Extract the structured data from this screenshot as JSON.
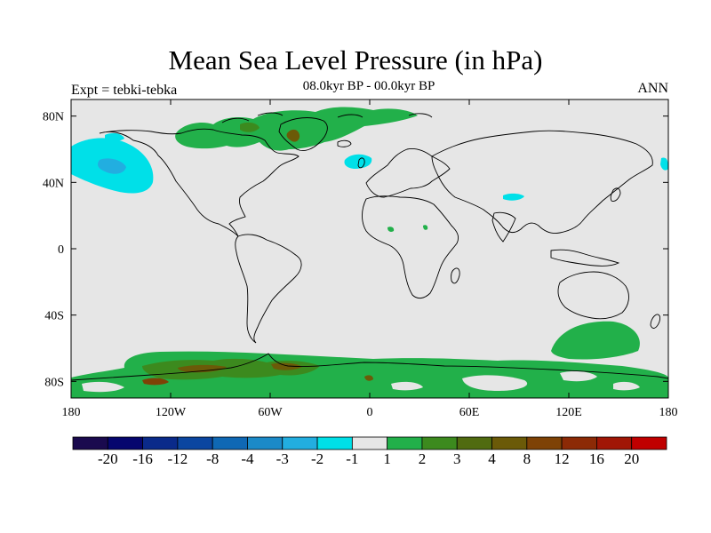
{
  "title": "Mean Sea Level Pressure (in hPa)",
  "subtitle": "08.0kyr BP - 00.0kyr BP",
  "left_string": "Expt = tebki-tebka",
  "right_string": "ANN",
  "colors": {
    "ocean_land_background": "#e6e6e6",
    "coastline": "#000000"
  },
  "map": {
    "lon_range": [
      -180,
      180
    ],
    "lat_range": [
      -90,
      90
    ],
    "lon_ticks": [
      {
        "value": -180,
        "label": "180"
      },
      {
        "value": -120,
        "label": "120W"
      },
      {
        "value": -60,
        "label": "60W"
      },
      {
        "value": 0,
        "label": "0"
      },
      {
        "value": 60,
        "label": "60E"
      },
      {
        "value": 120,
        "label": "120E"
      },
      {
        "value": 180,
        "label": "180"
      }
    ],
    "lat_ticks": [
      {
        "value": 80,
        "label": "80N"
      },
      {
        "value": 40,
        "label": "40N"
      },
      {
        "value": 0,
        "label": "0"
      },
      {
        "value": -40,
        "label": "40S"
      },
      {
        "value": -80,
        "label": "80S"
      }
    ]
  },
  "colorbar": {
    "colors": [
      "#1a0a4e",
      "#06066e",
      "#0a2a8a",
      "#0b46a0",
      "#0f68b4",
      "#1b8ac8",
      "#22aee0",
      "#00e0e8",
      "#e6e6e6",
      "#22b04a",
      "#3c8a1e",
      "#506b10",
      "#6b5a08",
      "#7e4206",
      "#8c2a06",
      "#a01606",
      "#c00000"
    ],
    "labels": [
      "-20",
      "-16",
      "-12",
      "-8",
      "-4",
      "-3",
      "-2",
      "-1",
      "1",
      "2",
      "3",
      "4",
      "8",
      "12",
      "16",
      "20"
    ]
  }
}
